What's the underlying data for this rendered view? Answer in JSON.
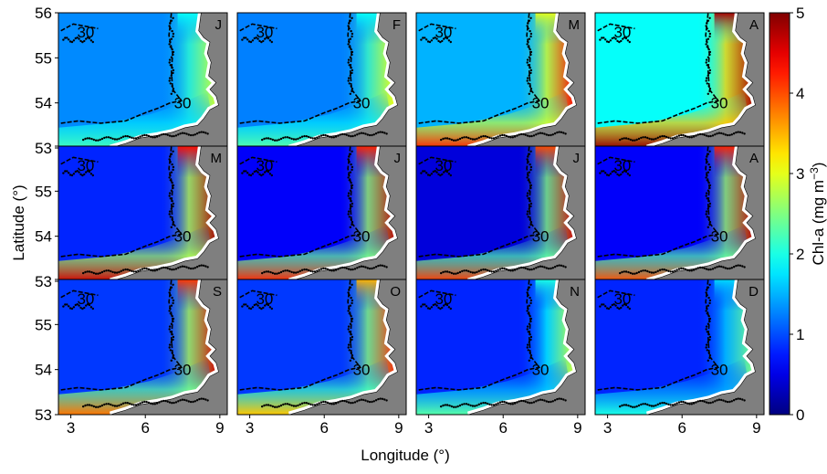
{
  "chart_data": {
    "type": "heatmap",
    "panel_grid": {
      "rows": 3,
      "cols": 4
    },
    "panels": [
      {
        "label": "J",
        "mean_level": 1.3,
        "coastal_level": 2.9,
        "bight_level": 2.2,
        "north_level": 1.9
      },
      {
        "label": "F",
        "mean_level": 1.25,
        "coastal_level": 3.1,
        "bight_level": 2.3,
        "north_level": 1.9
      },
      {
        "label": "M",
        "mean_level": 1.5,
        "coastal_level": 4.4,
        "bight_level": 4.2,
        "north_level": 3.0
      },
      {
        "label": "A",
        "mean_level": 1.9,
        "coastal_level": 4.8,
        "bight_level": 4.9,
        "north_level": 4.8
      },
      {
        "label": "M",
        "mean_level": 0.8,
        "coastal_level": 4.8,
        "bight_level": 4.6,
        "north_level": 4.3
      },
      {
        "label": "J",
        "mean_level": 0.6,
        "coastal_level": 4.7,
        "bight_level": 4.2,
        "north_level": 4.2
      },
      {
        "label": "J",
        "mean_level": 0.45,
        "coastal_level": 4.6,
        "bight_level": 4.1,
        "north_level": 4.0
      },
      {
        "label": "A",
        "mean_level": 0.6,
        "coastal_level": 4.7,
        "bight_level": 4.0,
        "north_level": 4.2
      },
      {
        "label": "S",
        "mean_level": 0.9,
        "coastal_level": 4.6,
        "bight_level": 3.8,
        "north_level": 4.1
      },
      {
        "label": "O",
        "mean_level": 0.9,
        "coastal_level": 4.2,
        "bight_level": 3.4,
        "north_level": 3.5
      },
      {
        "label": "N",
        "mean_level": 0.8,
        "coastal_level": 2.9,
        "bight_level": 2.3,
        "north_level": 2.0
      },
      {
        "label": "D",
        "mean_level": 0.8,
        "coastal_level": 2.5,
        "bight_level": 2.0,
        "north_level": 1.7
      }
    ],
    "contour_label": "30",
    "xlabel": "Longitude (°)",
    "ylabel": "Latitude (°)",
    "xticks": [
      "3",
      "6",
      "9"
    ],
    "xtick_values": [
      3,
      6,
      9
    ],
    "yticks": [
      "53",
      "54",
      "55",
      "56"
    ],
    "ytick_values": [
      53,
      54,
      55,
      56
    ],
    "xlim": [
      2.5,
      9.3
    ],
    "ylim": [
      53,
      56
    ],
    "colorbar": {
      "label": "Chl-a (mg m",
      "label_superscript": "−3",
      "label_close": ")",
      "ticks": [
        "0",
        "1",
        "2",
        "3",
        "4",
        "5"
      ],
      "tick_values": [
        0,
        1,
        2,
        3,
        4,
        5
      ],
      "range": [
        0,
        5
      ],
      "colormap": "jet"
    },
    "colors": {
      "land": "#7f7f7f",
      "contour": "#000000"
    }
  }
}
